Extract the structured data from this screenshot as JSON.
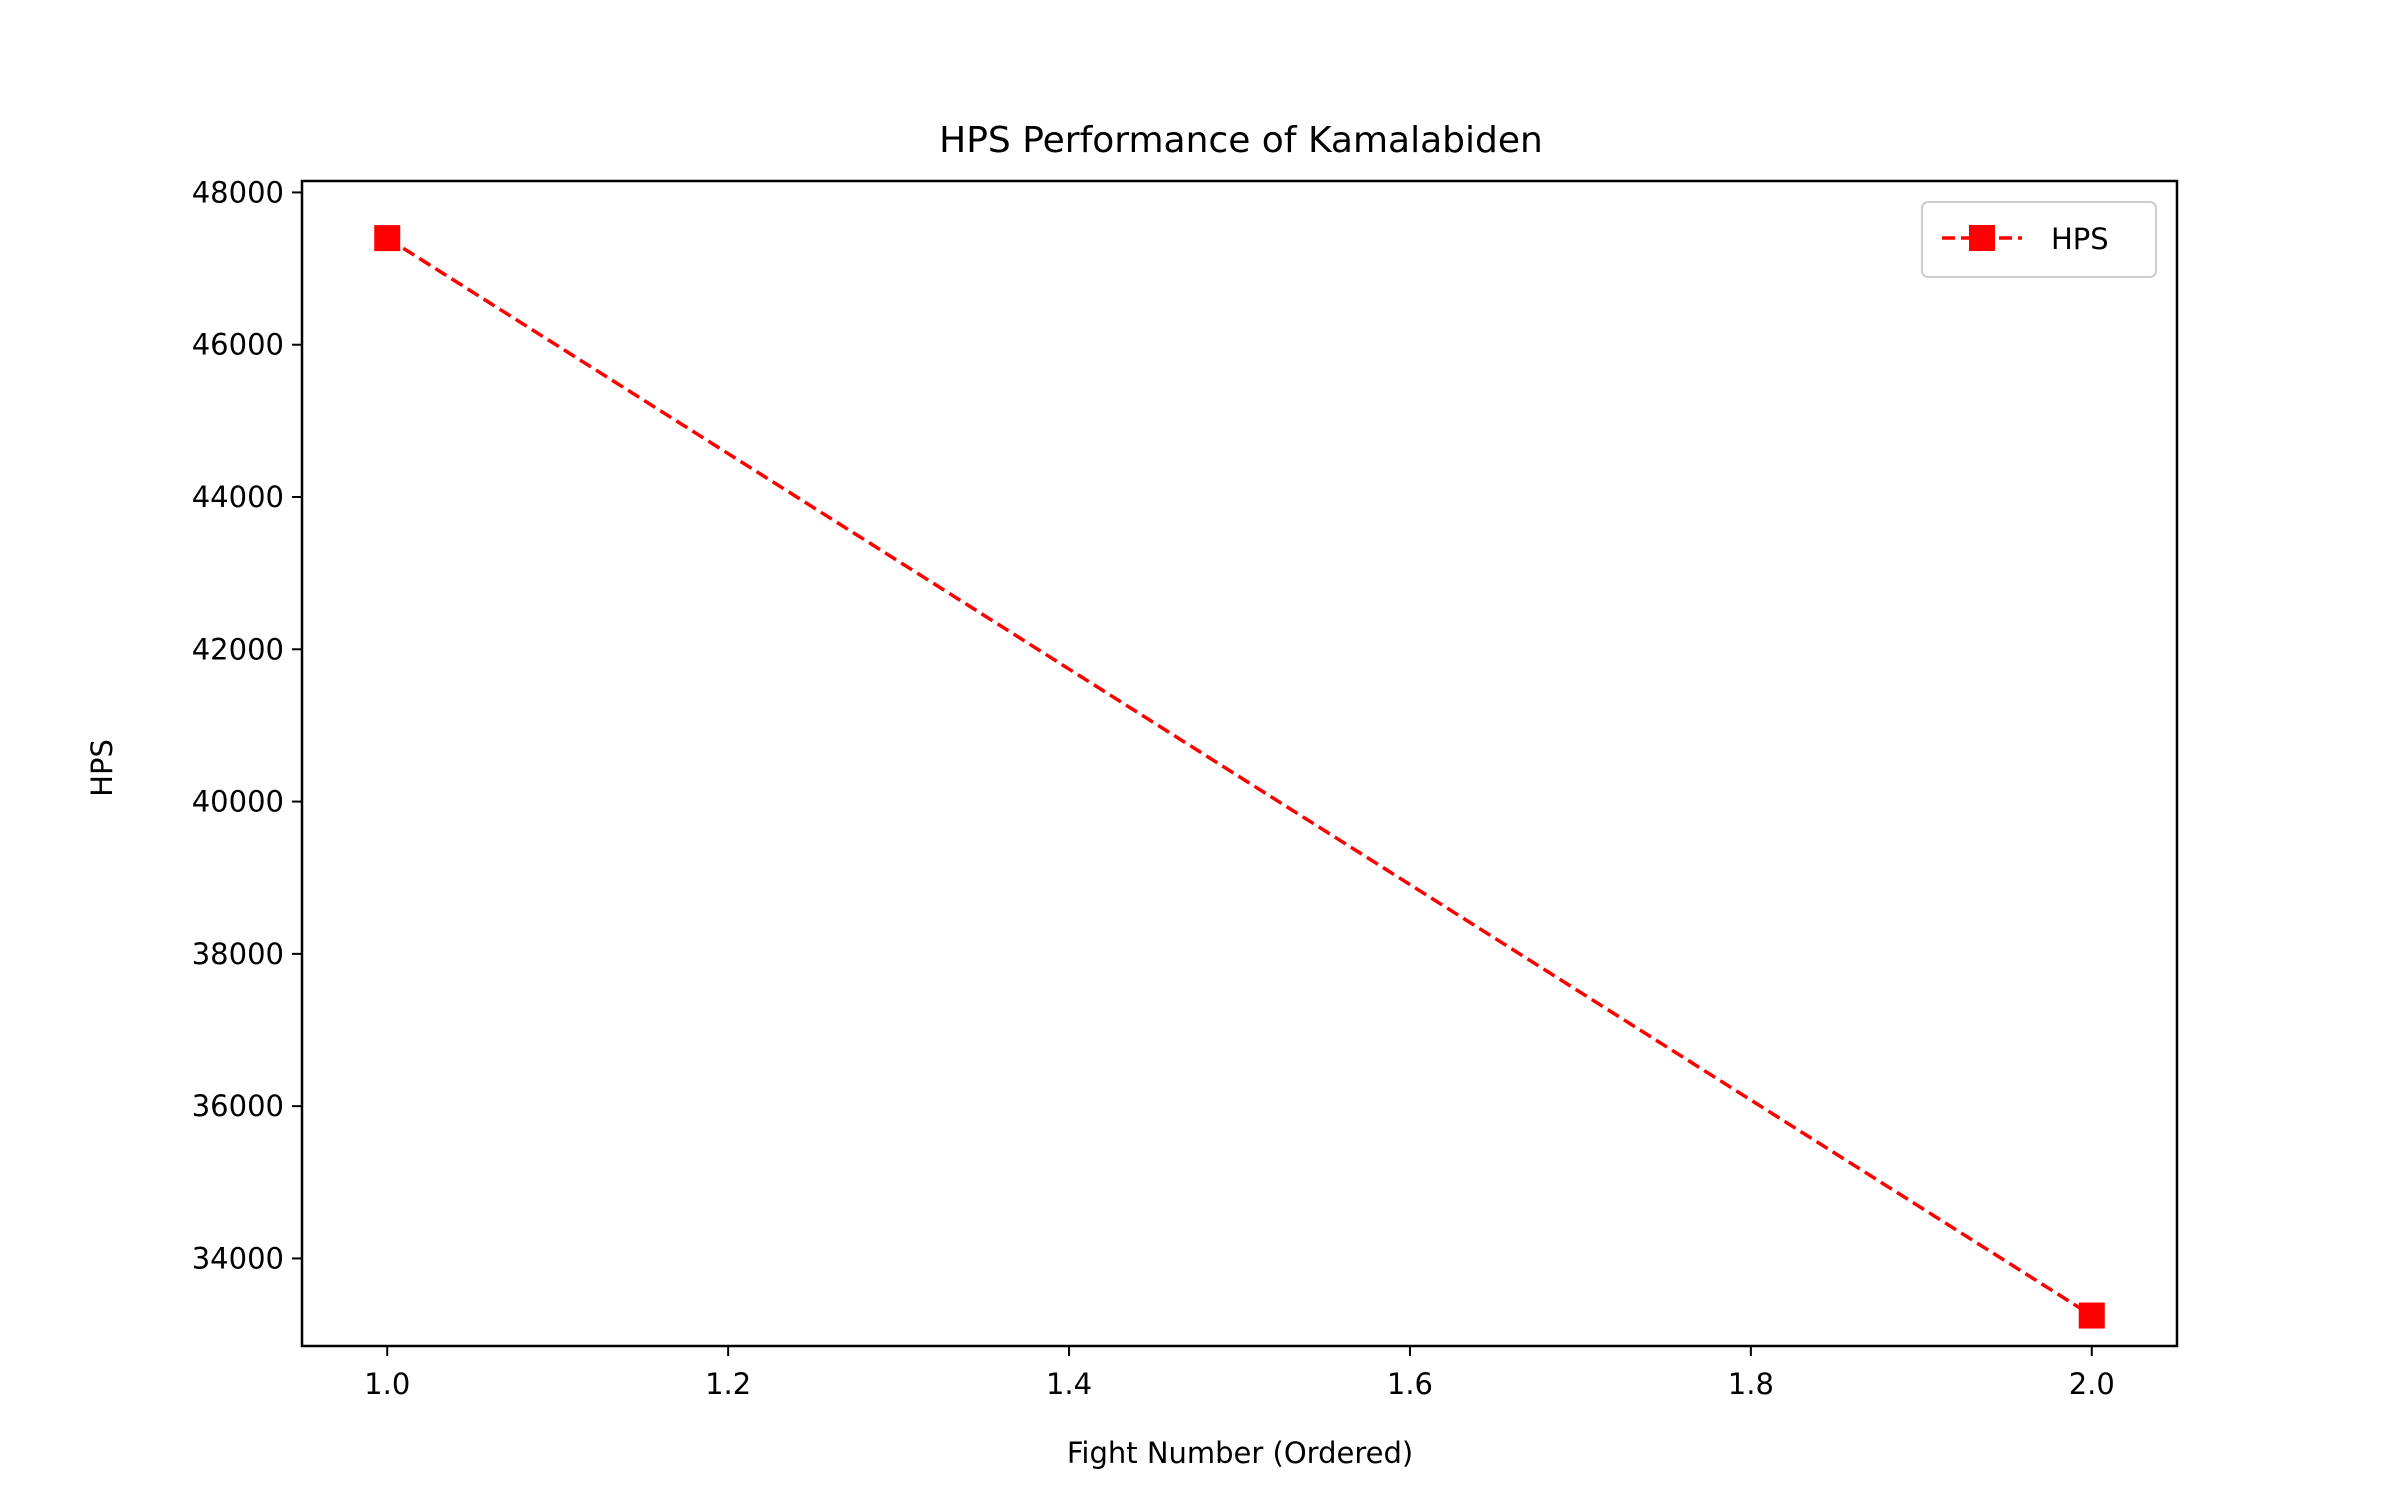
{
  "chart_data": {
    "type": "line",
    "title": "HPS Performance of Kamalabiden",
    "xlabel": "Fight Number (Ordered)",
    "ylabel": "HPS",
    "xlim": [
      0.95,
      2.05
    ],
    "ylim": [
      32850,
      48150
    ],
    "x_ticks": [
      1.0,
      1.2,
      1.4,
      1.6,
      1.8,
      2.0
    ],
    "x_tick_labels": [
      "1.0",
      "1.2",
      "1.4",
      "1.6",
      "1.8",
      "2.0"
    ],
    "y_ticks": [
      34000,
      36000,
      38000,
      40000,
      42000,
      44000,
      46000,
      48000
    ],
    "y_tick_labels": [
      "34000",
      "36000",
      "38000",
      "40000",
      "42000",
      "44000",
      "46000",
      "48000"
    ],
    "grid": false,
    "legend_position": "top-right",
    "series": [
      {
        "name": "HPS",
        "color": "#ff0000",
        "line_style": "dashed",
        "marker": "square",
        "x": [
          1,
          2
        ],
        "y": [
          47400,
          33250
        ]
      }
    ]
  }
}
